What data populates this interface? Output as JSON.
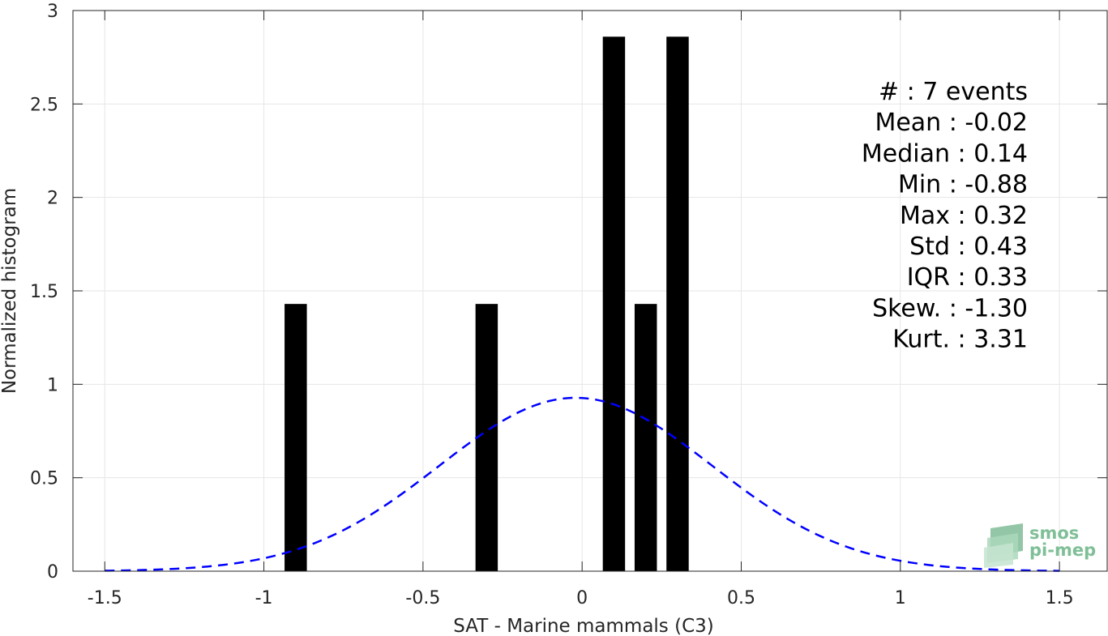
{
  "chart_data": {
    "type": "bar",
    "xlabel": "SAT - Marine mammals (C3)",
    "ylabel": "Normalized histogram",
    "xlim": [
      -1.5,
      1.5
    ],
    "ylim": [
      0,
      3
    ],
    "grid": true,
    "x_ticks": [
      "-1.5",
      "-1",
      "-0.5",
      "0",
      "0.5",
      "1",
      "1.5"
    ],
    "y_ticks": [
      "0",
      "0.5",
      "1",
      "1.5",
      "2",
      "2.5",
      "3"
    ],
    "bar_width": 0.07,
    "bars": [
      {
        "x": -0.9,
        "value": 1.43
      },
      {
        "x": -0.3,
        "value": 1.43
      },
      {
        "x": 0.1,
        "value": 2.86
      },
      {
        "x": 0.2,
        "value": 1.43
      },
      {
        "x": 0.3,
        "value": 2.86
      }
    ],
    "fit_curve": {
      "style": "dashed",
      "color": "#0000ff",
      "mean": -0.02,
      "std": 0.43,
      "x_range": [
        -1.5,
        1.5
      ]
    },
    "bar_color": "#000000",
    "stats_lines": [
      "#  : 7 events",
      "Mean : -0.02",
      "Median : 0.14",
      "Min : -0.88",
      "Max : 0.32",
      "Std : 0.43",
      "IQR : 0.33",
      "Skew. : -1.30",
      "Kurt. : 3.31"
    ]
  },
  "logo": {
    "line1": "smos",
    "line2": "pi-mep",
    "color": "#7fbf97"
  }
}
